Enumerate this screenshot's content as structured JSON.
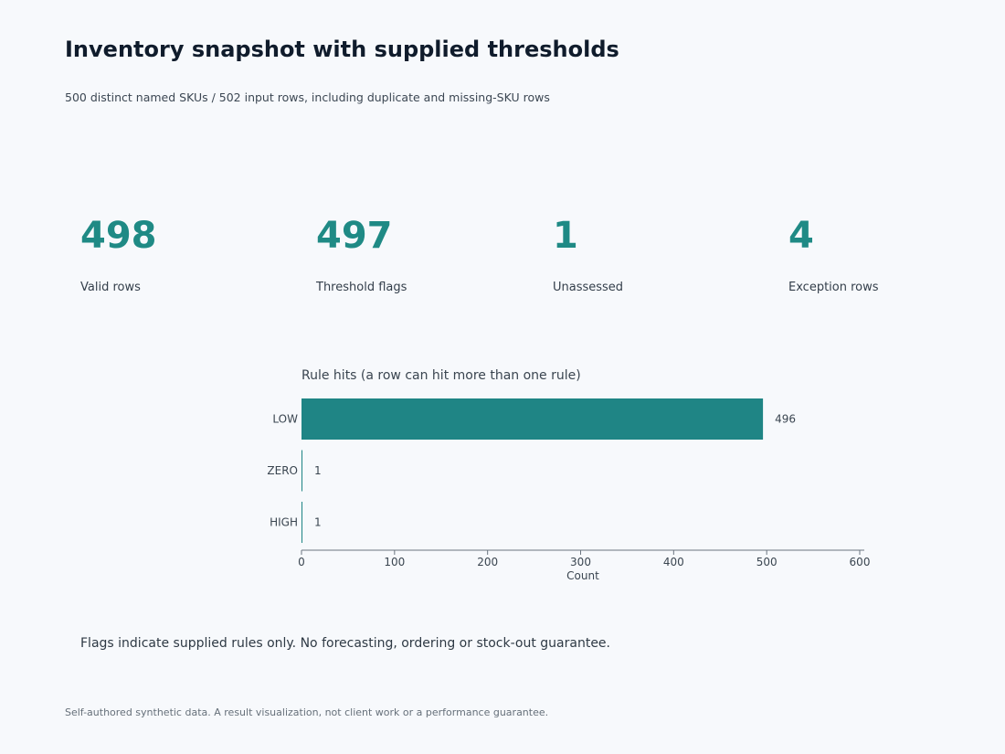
{
  "header": {
    "title": "Inventory snapshot with supplied thresholds",
    "subtitle": "500 distinct named SKUs / 502 input rows, including duplicate and missing-SKU rows"
  },
  "kpis": [
    {
      "value": "498",
      "label": "Valid rows"
    },
    {
      "value": "497",
      "label": "Threshold flags"
    },
    {
      "value": "1",
      "label": "Unassessed"
    },
    {
      "value": "4",
      "label": "Exception rows"
    }
  ],
  "chart_data": {
    "type": "bar",
    "orientation": "horizontal",
    "title": "Rule hits (a row can hit more than one rule)",
    "categories": [
      "LOW",
      "ZERO",
      "HIGH"
    ],
    "values": [
      496,
      1,
      1
    ],
    "data_labels": [
      "496",
      "1",
      "1"
    ],
    "xlabel": "Count",
    "ylabel": "",
    "xlim": [
      0,
      600
    ],
    "xticks": [
      0,
      100,
      200,
      300,
      400,
      500,
      600
    ],
    "grid": false,
    "bar_color": "#1f8585"
  },
  "note": "Flags indicate supplied rules only. No forecasting, ordering or stock-out guarantee.",
  "footer": "Self-authored synthetic data. A result visualization, not client work or a performance guarantee.",
  "colors": {
    "accent": "#1f8a85",
    "background": "#f7f9fc",
    "title": "#101c2c"
  }
}
